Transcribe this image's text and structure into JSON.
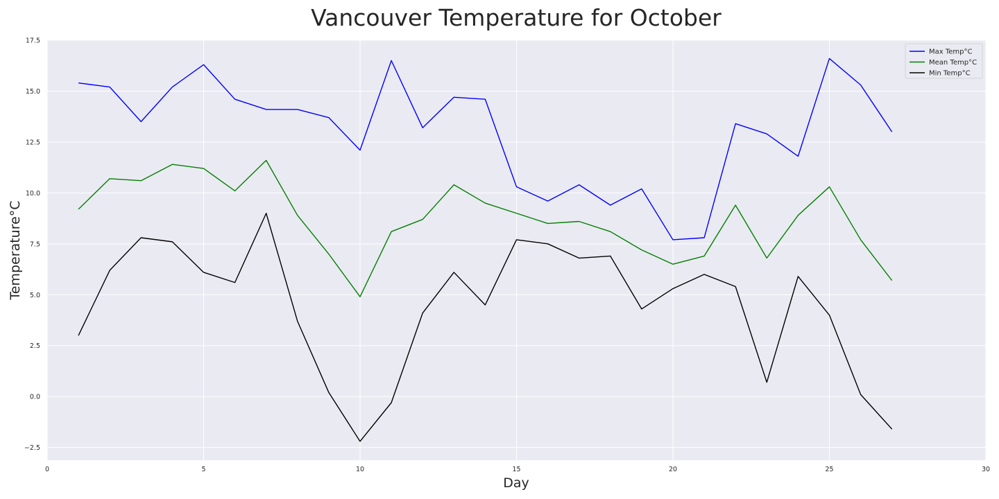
{
  "chart_data": {
    "type": "line",
    "title": "Vancouver Temperature for October",
    "xlabel": "Day",
    "ylabel": "Temperature°C",
    "xlim": [
      0,
      30
    ],
    "ylim": [
      -3.125,
      17.5
    ],
    "xticks": [
      0,
      5,
      10,
      15,
      20,
      25,
      30
    ],
    "yticks": [
      -2.5,
      0.0,
      2.5,
      5.0,
      7.5,
      10.0,
      12.5,
      15.0,
      17.5
    ],
    "xtick_labels": [
      "0",
      "5",
      "10",
      "15",
      "20",
      "25",
      "30"
    ],
    "ytick_labels": [
      "−2.5",
      "0.0",
      "2.5",
      "5.0",
      "7.5",
      "10.0",
      "12.5",
      "15.0",
      "17.5"
    ],
    "grid": true,
    "legend_position": "top-right",
    "x": [
      1,
      2,
      3,
      4,
      5,
      6,
      7,
      8,
      9,
      10,
      11,
      12,
      13,
      14,
      15,
      16,
      17,
      18,
      19,
      20,
      21,
      22,
      23,
      24,
      25,
      26,
      27
    ],
    "series": [
      {
        "name": "Max Temp°C",
        "color": "#0000ff",
        "values": [
          15.4,
          15.2,
          13.5,
          15.2,
          16.3,
          14.6,
          14.1,
          14.1,
          13.7,
          12.1,
          16.5,
          13.2,
          14.7,
          14.6,
          10.3,
          9.6,
          10.4,
          9.4,
          10.2,
          7.7,
          7.8,
          13.4,
          12.9,
          11.8,
          16.6,
          15.3,
          13.0
        ]
      },
      {
        "name": "Mean Temp°C",
        "color": "#008000",
        "values": [
          9.2,
          10.7,
          10.6,
          11.4,
          11.2,
          10.1,
          11.6,
          8.9,
          7.0,
          4.9,
          8.1,
          8.7,
          10.4,
          9.5,
          9.0,
          8.5,
          8.6,
          8.1,
          7.2,
          6.5,
          6.9,
          9.4,
          6.8,
          8.9,
          10.3,
          7.7,
          5.7
        ]
      },
      {
        "name": "Min Temp°C",
        "color": "#000000",
        "values": [
          3.0,
          6.2,
          7.8,
          7.6,
          6.1,
          5.6,
          9.0,
          3.7,
          0.2,
          -2.2,
          -0.3,
          4.1,
          6.1,
          4.5,
          7.7,
          7.5,
          6.8,
          6.9,
          4.3,
          5.3,
          6.0,
          5.4,
          0.7,
          5.9,
          4.0,
          0.1,
          -1.6
        ]
      }
    ]
  }
}
